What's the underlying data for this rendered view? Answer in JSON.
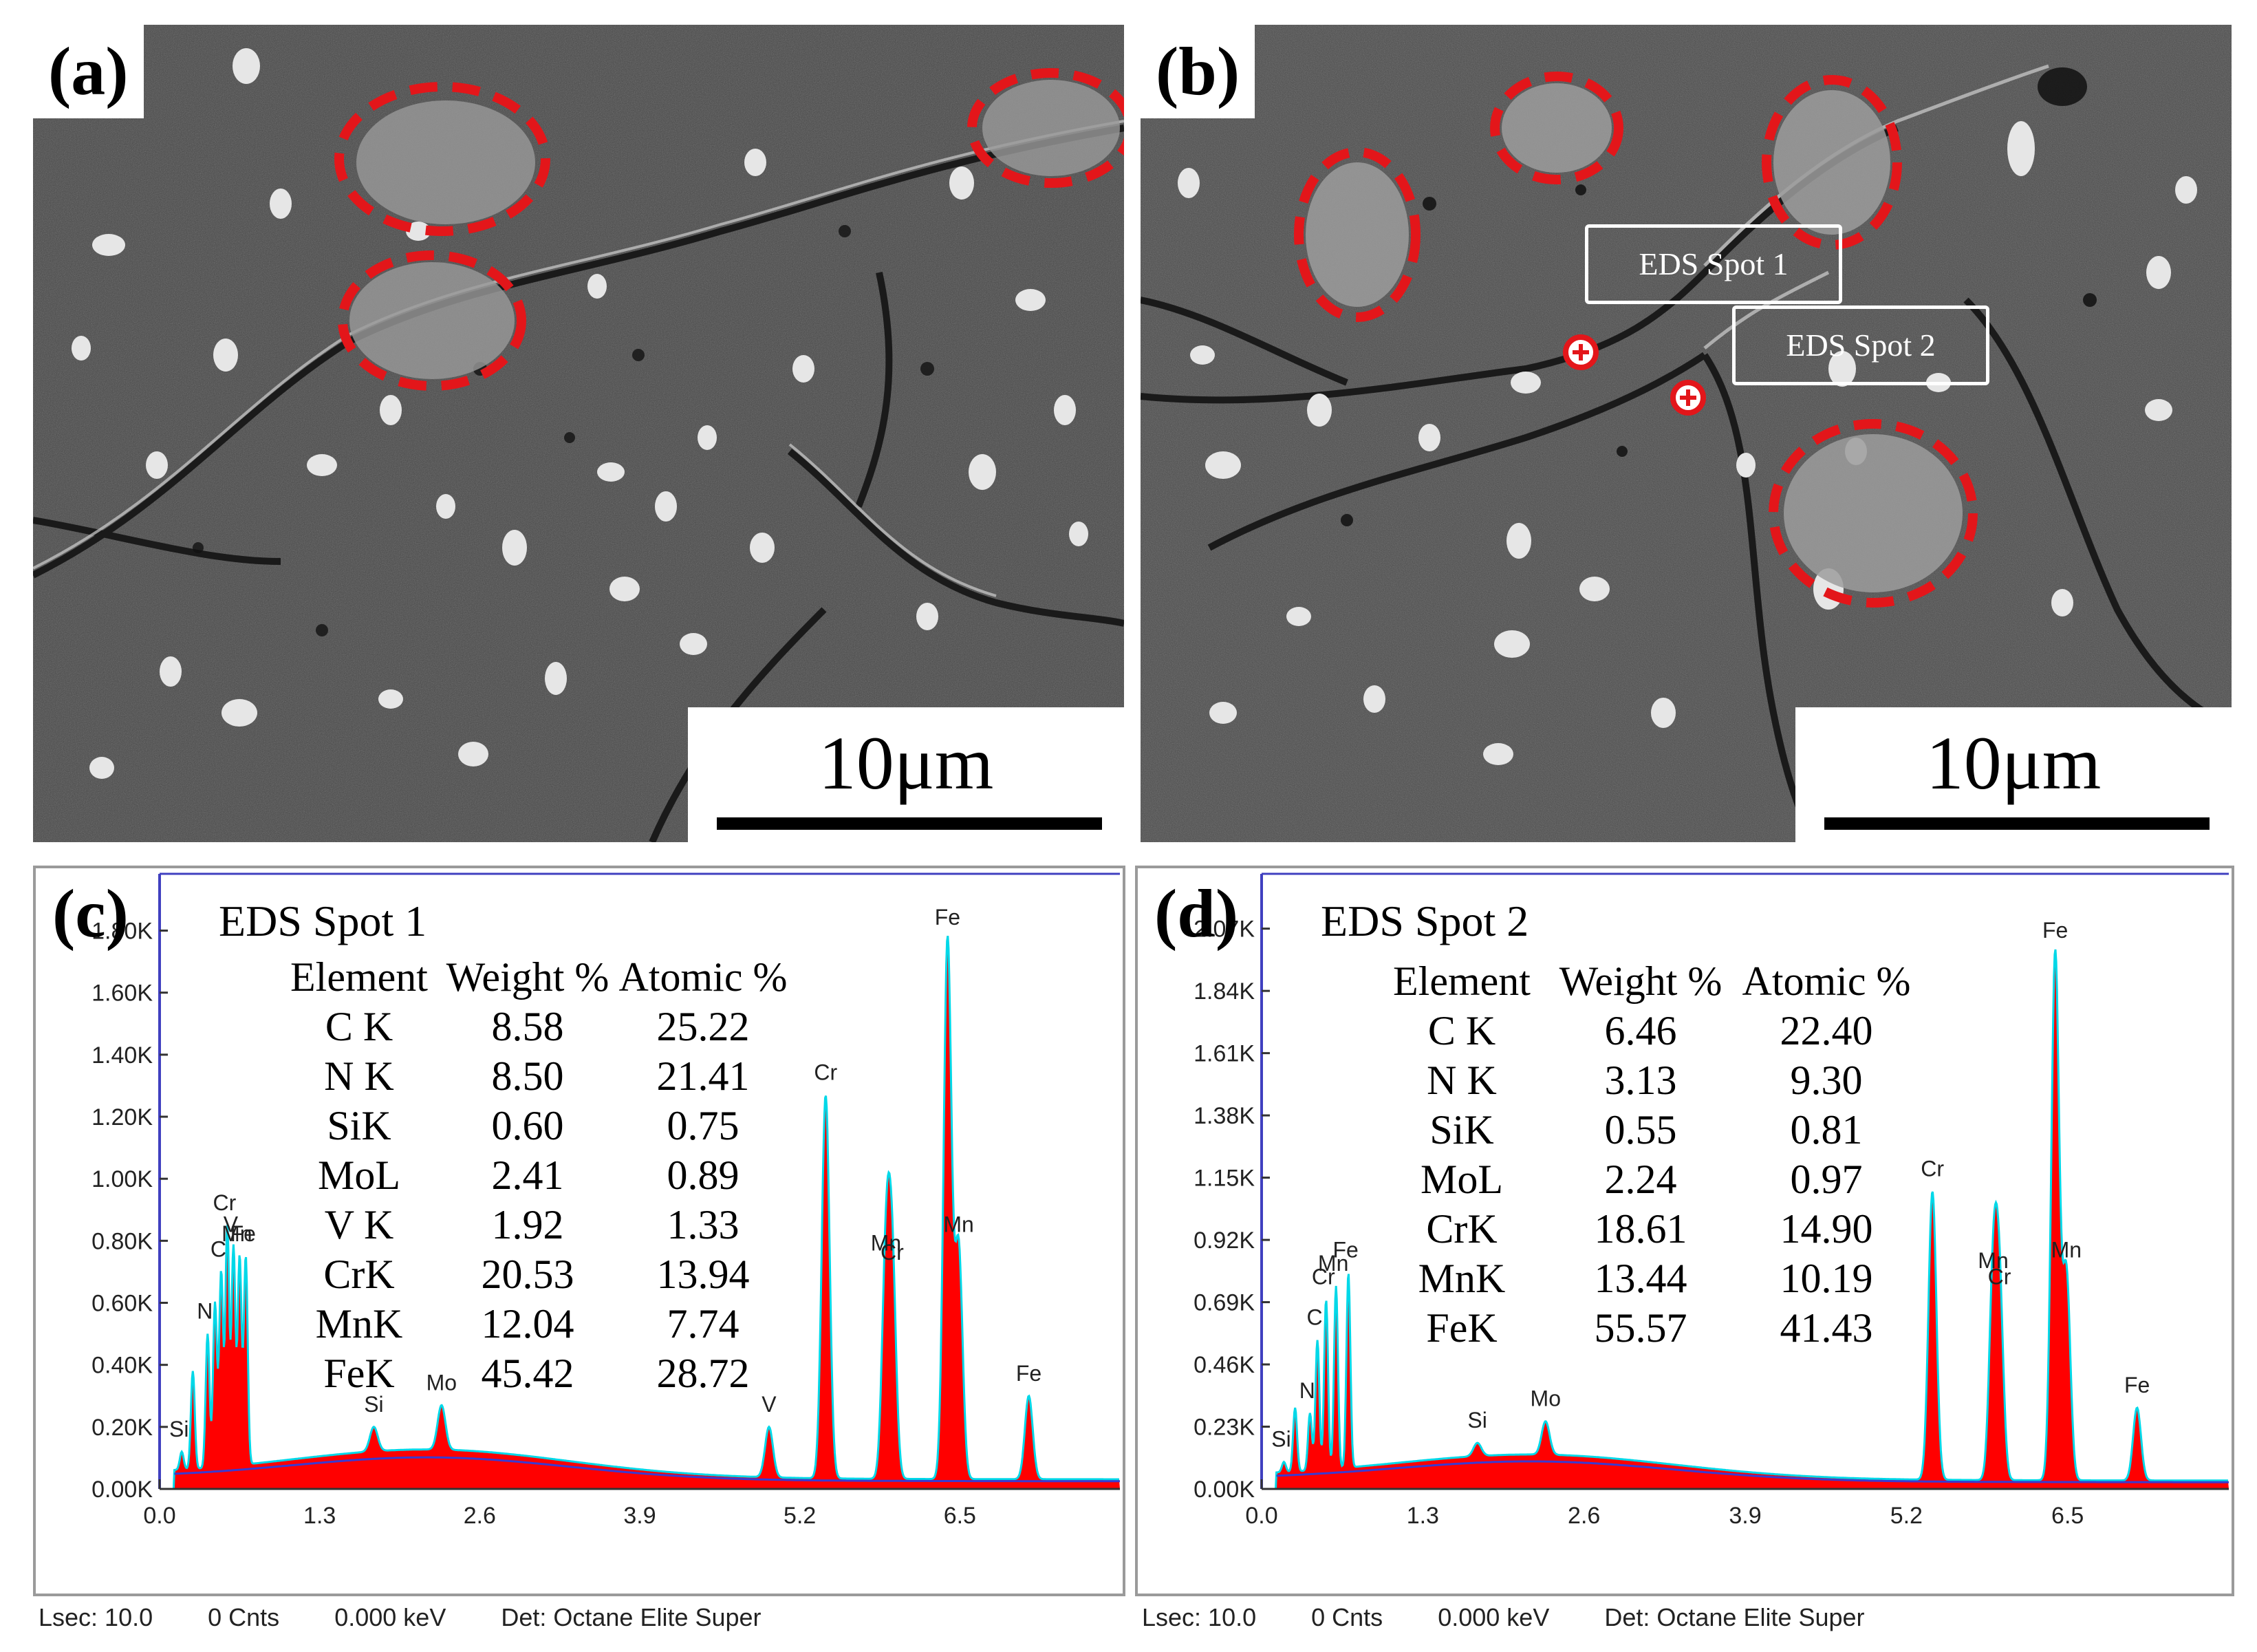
{
  "panels": {
    "a": {
      "label": "(a)",
      "scale": "10μm"
    },
    "b": {
      "label": "(b)",
      "scale": "10μm",
      "spot1": "EDS Spot 1",
      "spot2": "EDS Spot 2"
    },
    "c": {
      "label": "(c)"
    },
    "d": {
      "label": "(d)"
    }
  },
  "chart_data": [
    {
      "type": "area",
      "panel": "c",
      "title": "EDS Spot 1",
      "xlabel": "",
      "ylabel": "",
      "xlim": [
        0.0,
        7.8
      ],
      "x_ticks": [
        "0.0",
        "1.3",
        "2.6",
        "3.9",
        "5.2",
        "6.5"
      ],
      "y_ticks": [
        "0.00K",
        "0.20K",
        "0.40K",
        "0.60K",
        "0.80K",
        "1.00K",
        "1.20K",
        "1.40K",
        "1.60K",
        "1.80K"
      ],
      "ylim": [
        0,
        1.85
      ],
      "peaks": [
        {
          "x": 0.18,
          "y": 0.12,
          "label": "Si"
        },
        {
          "x": 0.27,
          "y": 0.38,
          "label": ""
        },
        {
          "x": 0.39,
          "y": 0.5,
          "label": "N"
        },
        {
          "x": 0.45,
          "y": 0.6,
          "label": ""
        },
        {
          "x": 0.5,
          "y": 0.7,
          "label": "C"
        },
        {
          "x": 0.55,
          "y": 0.85,
          "label": "Cr"
        },
        {
          "x": 0.6,
          "y": 0.78,
          "label": "V"
        },
        {
          "x": 0.65,
          "y": 0.75,
          "label": "Mn"
        },
        {
          "x": 0.7,
          "y": 0.75,
          "label": "Fe"
        },
        {
          "x": 1.74,
          "y": 0.2,
          "label": "Si"
        },
        {
          "x": 2.29,
          "y": 0.27,
          "label": "Mo"
        },
        {
          "x": 4.95,
          "y": 0.2,
          "label": "V"
        },
        {
          "x": 5.41,
          "y": 1.27,
          "label": "Cr"
        },
        {
          "x": 5.9,
          "y": 0.72,
          "label": "Mn"
        },
        {
          "x": 5.95,
          "y": 0.69,
          "label": "Cr"
        },
        {
          "x": 6.4,
          "y": 1.77,
          "label": "Fe"
        },
        {
          "x": 6.49,
          "y": 0.78,
          "label": "Mn"
        },
        {
          "x": 7.06,
          "y": 0.3,
          "label": "Fe"
        }
      ],
      "table": {
        "headers": [
          "Element",
          "Weight %",
          "Atomic %"
        ],
        "rows": [
          [
            "C K",
            "8.58",
            "25.22"
          ],
          [
            "N K",
            "8.50",
            "21.41"
          ],
          [
            "SiK",
            "0.60",
            "0.75"
          ],
          [
            "MoL",
            "2.41",
            "0.89"
          ],
          [
            "V K",
            "1.92",
            "1.33"
          ],
          [
            "CrK",
            "20.53",
            "13.94"
          ],
          [
            "MnK",
            "12.04",
            "7.74"
          ],
          [
            "FeK",
            "45.42",
            "28.72"
          ]
        ]
      },
      "footer": {
        "lsec": "Lsec: 10.0",
        "cnts": "0 Cnts",
        "kev": "0.000 keV",
        "det": "Det: Octane Elite Super"
      },
      "colors": {
        "fill": "#ff0000",
        "line": "#00d8e8",
        "axis": "#4040c0"
      }
    },
    {
      "type": "area",
      "panel": "d",
      "title": "EDS Spot 2",
      "xlabel": "",
      "ylabel": "",
      "xlim": [
        0.0,
        7.8
      ],
      "x_ticks": [
        "0.0",
        "1.3",
        "2.6",
        "3.9",
        "5.2",
        "6.5"
      ],
      "y_ticks": [
        "0.00K",
        "0.23K",
        "0.46K",
        "0.69K",
        "0.92K",
        "1.15K",
        "1.38K",
        "1.61K",
        "1.84K",
        "2.07K"
      ],
      "ylim": [
        0,
        2.12
      ],
      "peaks": [
        {
          "x": 0.18,
          "y": 0.1,
          "label": "Si"
        },
        {
          "x": 0.27,
          "y": 0.3,
          "label": ""
        },
        {
          "x": 0.39,
          "y": 0.28,
          "label": "N"
        },
        {
          "x": 0.45,
          "y": 0.55,
          "label": "C"
        },
        {
          "x": 0.52,
          "y": 0.7,
          "label": "Cr"
        },
        {
          "x": 0.6,
          "y": 0.75,
          "label": "Mn"
        },
        {
          "x": 0.7,
          "y": 0.8,
          "label": "Fe"
        },
        {
          "x": 1.74,
          "y": 0.17,
          "label": "Si"
        },
        {
          "x": 2.29,
          "y": 0.25,
          "label": "Mo"
        },
        {
          "x": 5.41,
          "y": 1.1,
          "label": "Cr"
        },
        {
          "x": 5.9,
          "y": 0.76,
          "label": "Mn"
        },
        {
          "x": 5.95,
          "y": 0.7,
          "label": "Cr"
        },
        {
          "x": 6.4,
          "y": 1.98,
          "label": "Fe"
        },
        {
          "x": 6.49,
          "y": 0.8,
          "label": "Mn"
        },
        {
          "x": 7.06,
          "y": 0.3,
          "label": "Fe"
        }
      ],
      "table": {
        "headers": [
          "Element",
          "Weight %",
          "Atomic %"
        ],
        "rows": [
          [
            "C K",
            "6.46",
            "22.40"
          ],
          [
            "N K",
            "3.13",
            "9.30"
          ],
          [
            "SiK",
            "0.55",
            "0.81"
          ],
          [
            "MoL",
            "2.24",
            "0.97"
          ],
          [
            "CrK",
            "18.61",
            "14.90"
          ],
          [
            "MnK",
            "13.44",
            "10.19"
          ],
          [
            "FeK",
            "55.57",
            "41.43"
          ]
        ]
      },
      "footer": {
        "lsec": "Lsec: 10.0",
        "cnts": "0 Cnts",
        "kev": "0.000 keV",
        "det": "Det: Octane Elite Super"
      },
      "colors": {
        "fill": "#ff0000",
        "line": "#00d8e8",
        "axis": "#4040c0"
      }
    }
  ]
}
